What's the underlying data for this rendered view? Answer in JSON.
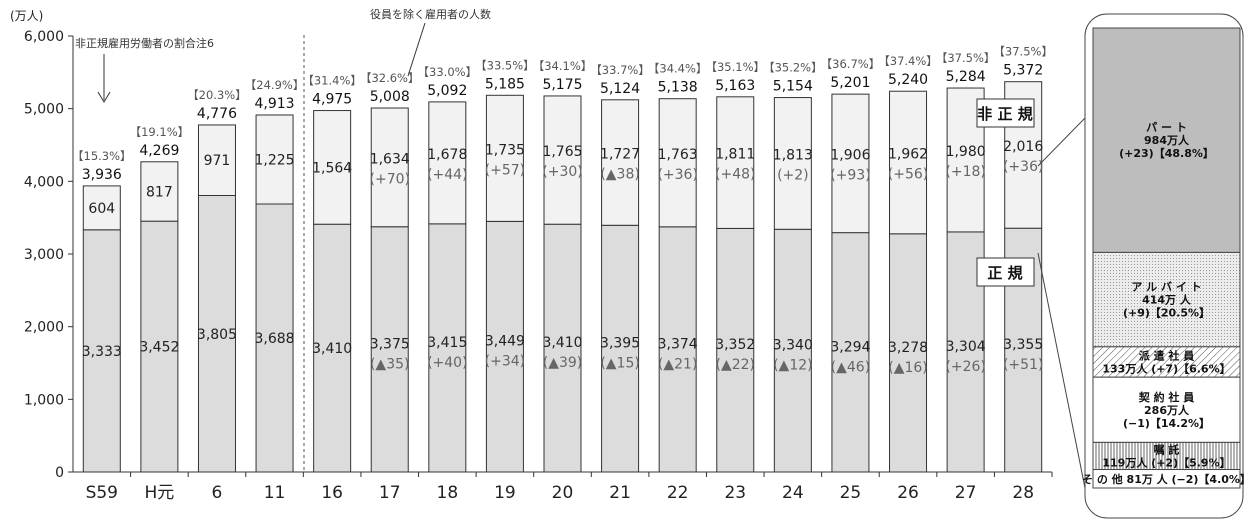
{
  "chart_data": {
    "type": "bar",
    "unit": "(万人)",
    "ylim": [
      0,
      6000
    ],
    "yticks": [
      "0",
      "1,000",
      "2,000",
      "3,000",
      "4,000",
      "5,000",
      "6,000"
    ],
    "categories": [
      "S59",
      "H元",
      "6",
      "11",
      "16",
      "17",
      "18",
      "19",
      "20",
      "21",
      "22",
      "23",
      "24",
      "25",
      "26",
      "27",
      "28"
    ],
    "series": [
      {
        "name": "正 規",
        "values": [
          3333,
          3452,
          3805,
          3688,
          3410,
          3375,
          3415,
          3449,
          3410,
          3395,
          3374,
          3352,
          3340,
          3294,
          3278,
          3304,
          3355
        ],
        "labels": [
          "3,333",
          "3,452",
          "3,805",
          "3,688",
          "3,410",
          "3,375",
          "3,415",
          "3,449",
          "3,410",
          "3,395",
          "3,374",
          "3,352",
          "3,340",
          "3,294",
          "3,278",
          "3,304",
          "3,355"
        ],
        "changes": [
          "",
          "",
          "",
          "",
          "",
          "(▲35)",
          "(+40)",
          "(+34)",
          "(▲39)",
          "(▲15)",
          "(▲21)",
          "(▲22)",
          "(▲12)",
          "(▲46)",
          "(▲16)",
          "(+26)",
          "(+51)"
        ]
      },
      {
        "name": "非 正 規",
        "values": [
          604,
          817,
          971,
          1225,
          1564,
          1634,
          1678,
          1735,
          1765,
          1727,
          1763,
          1811,
          1813,
          1906,
          1962,
          1980,
          2016
        ],
        "labels": [
          "604",
          "817",
          "971",
          "1,225",
          "1,564",
          "1,634",
          "1,678",
          "1,735",
          "1,765",
          "1,727",
          "1,763",
          "1,811",
          "1,813",
          "1,906",
          "1,962",
          "1,980",
          "2,016"
        ],
        "changes": [
          "",
          "",
          "",
          "",
          "",
          "(+70)",
          "(+44)",
          "(+57)",
          "(+30)",
          "(▲38)",
          "(+36)",
          "(+48)",
          "(+2)",
          "(+93)",
          "(+56)",
          "(+18)",
          "(+36)"
        ]
      }
    ],
    "totals": [
      3936,
      4269,
      4776,
      4913,
      4975,
      5008,
      5092,
      5185,
      5175,
      5124,
      5138,
      5163,
      5154,
      5201,
      5240,
      5284,
      5372
    ],
    "total_labels": [
      "3,936",
      "4,269",
      "4,776",
      "4,913",
      "4,975",
      "5,008",
      "5,092",
      "5,185",
      "5,175",
      "5,124",
      "5,138",
      "5,163",
      "5,154",
      "5,201",
      "5,240",
      "5,284",
      "5,372"
    ],
    "ratios": [
      "【15.3%】",
      "【19.1%】",
      "【20.3%】",
      "【24.9%】",
      "【31.4%】",
      "【32.6%】",
      "【33.0%】",
      "【33.5%】",
      "【34.1%】",
      "【33.7%】",
      "【34.4%】",
      "【35.1%】",
      "【35.2%】",
      "【36.7%】",
      "【37.4%】",
      "【37.5%】",
      "【37.5%】"
    ],
    "annotations": {
      "ratio_note": "非正規雇用労働者の割合注6",
      "total_note": "役員を除く雇用者の人数"
    },
    "breakdown": [
      {
        "name": "パ ー ト",
        "amount": "984万人",
        "detail": "(+23)【48.8%】",
        "value": 984,
        "pattern": "dark"
      },
      {
        "name": "ア ル バ イ ト",
        "amount": "414万 人",
        "detail": "(+9)【20.5%】",
        "value": 414,
        "pattern": "dots"
      },
      {
        "name": "派 遣 社 員",
        "amount": "133万人 (+7)【6.6%】",
        "detail": "",
        "value": 133,
        "pattern": "diag"
      },
      {
        "name": "契 約 社 員",
        "amount": "286万人",
        "detail": "(−1)【14.2%】",
        "value": 286,
        "pattern": "white"
      },
      {
        "name": "嘱 託",
        "amount": "119万人 (+2)【5.9%】",
        "detail": "",
        "value": 119,
        "pattern": "vert"
      },
      {
        "name": "そ の 他 81万 人 (−2)【4.0%】",
        "amount": "",
        "detail": "",
        "value": 81,
        "pattern": "white"
      }
    ]
  }
}
